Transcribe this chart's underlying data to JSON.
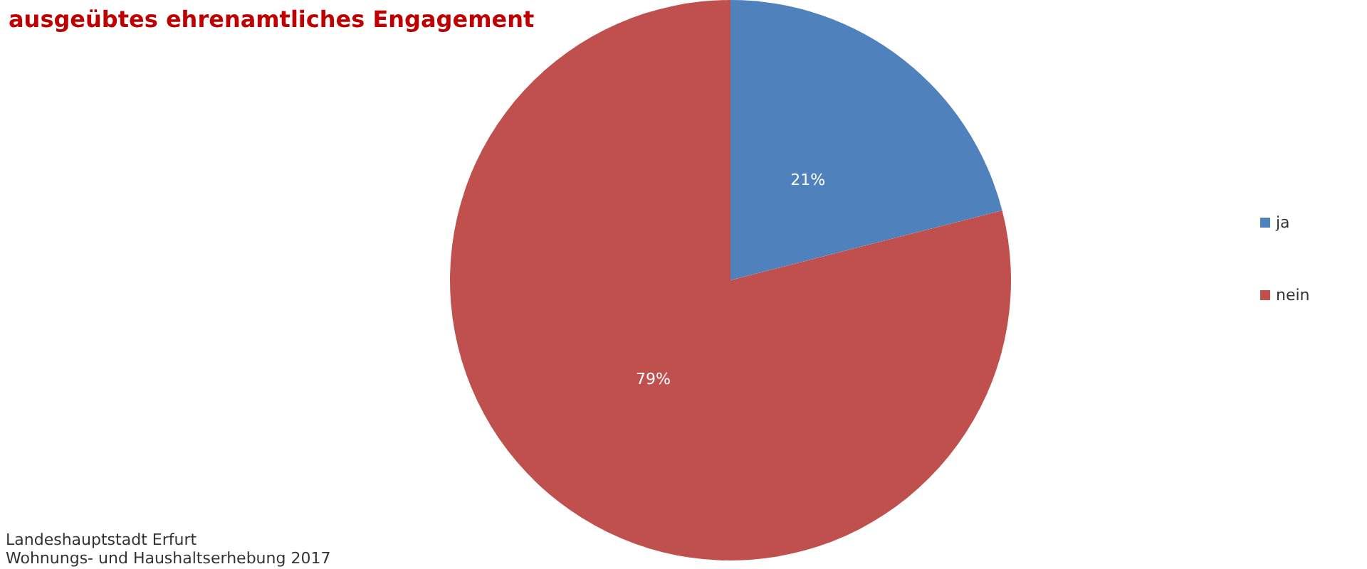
{
  "chart_data": {
    "type": "pie",
    "title": "ausgeübtes ehrenamtliches Engagement",
    "categories": [
      "ja",
      "nein"
    ],
    "values": [
      21,
      79
    ],
    "colors": [
      "#4f81bd",
      "#c0504d"
    ],
    "value_labels": [
      "21%",
      "79%"
    ],
    "legend": "right",
    "annotations": [
      "Landeshauptstadt Erfurt",
      "Wohnungs- und Haushaltserhebung 2017"
    ]
  }
}
